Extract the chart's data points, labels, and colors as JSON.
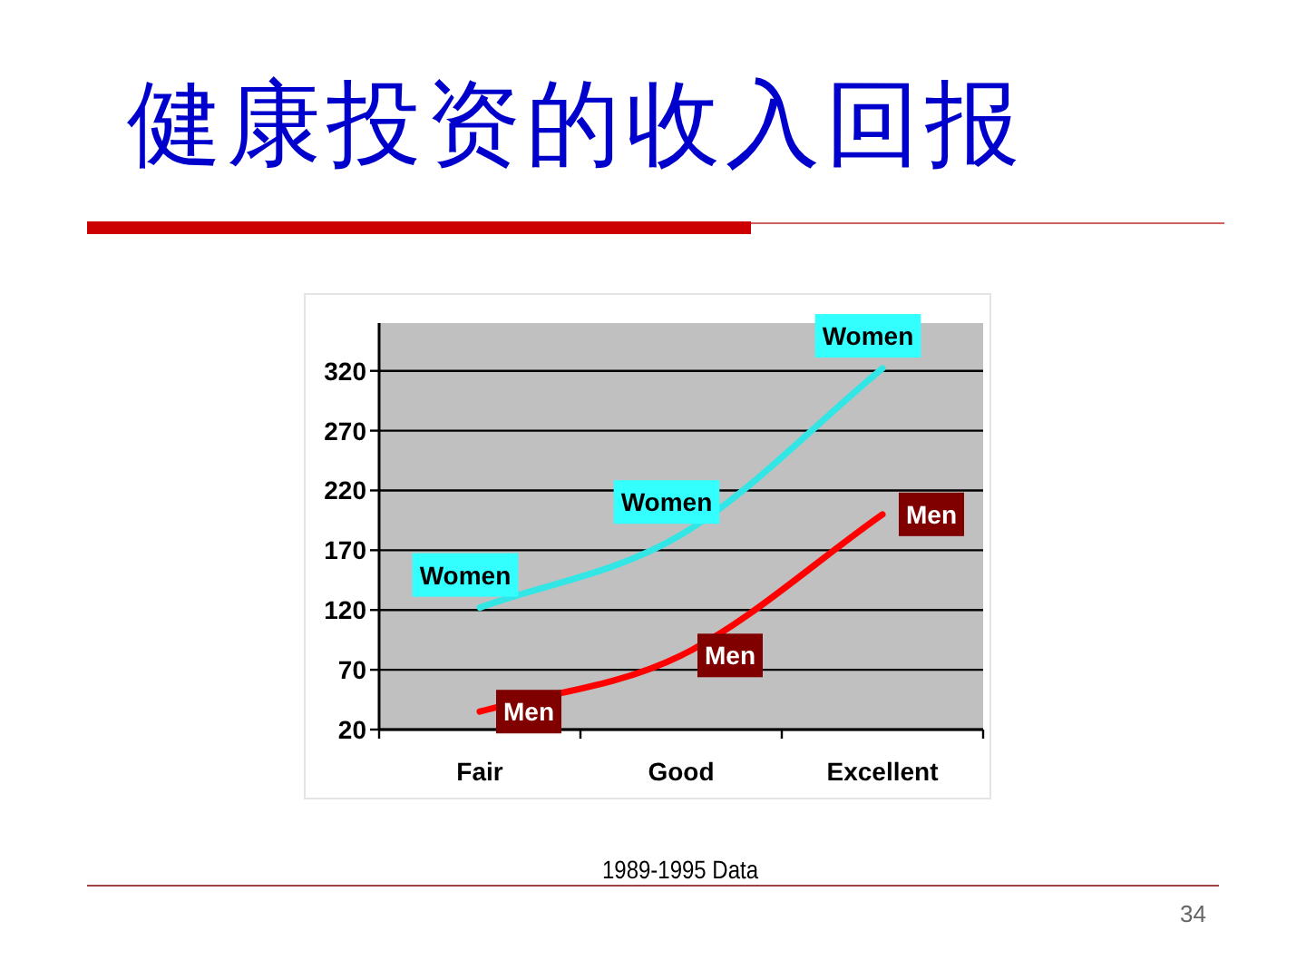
{
  "chart_data": {
    "type": "line",
    "title": "健康投资的收入回报",
    "categories": [
      "Fair",
      "Good",
      "Excellent"
    ],
    "series": [
      {
        "name": "Women",
        "color": "#33e6e6",
        "values": [
          122,
          183,
          322
        ]
      },
      {
        "name": "Men",
        "color": "#ff0000",
        "values": [
          35,
          82,
          200
        ]
      }
    ],
    "ylim": [
      20,
      360
    ],
    "yticks": [
      20,
      70,
      120,
      170,
      220,
      270,
      320
    ],
    "grid": "y",
    "marker": "none",
    "line_style": "solid",
    "annotations": [
      "1989-1995 Data",
      "34"
    ]
  }
}
